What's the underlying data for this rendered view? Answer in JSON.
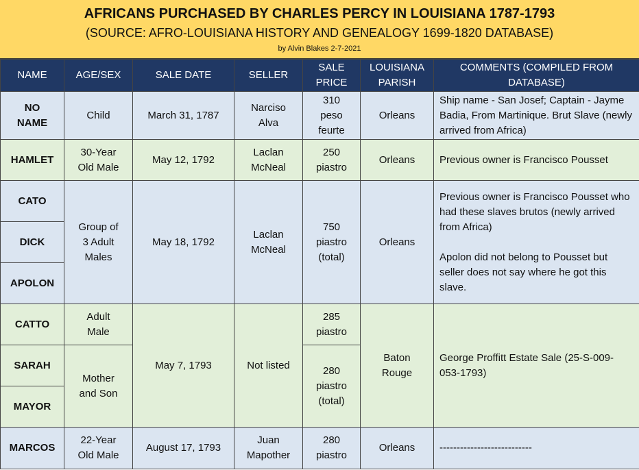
{
  "header": {
    "title": "AFRICANS PURCHASED BY CHARLES PERCY IN LOUISIANA 1787-1793",
    "subtitle": "(SOURCE: AFRO-LOUISIANA HISTORY AND GENEALOGY 1699-1820 DATABASE)",
    "byline": "by Alvin Blakes  2-7-2021"
  },
  "columns": {
    "name": "NAME",
    "age_sex": "AGE/SEX",
    "sale_date": "SALE DATE",
    "seller": "SELLER",
    "sale_price": "SALE PRICE",
    "parish": "LOUISIANA PARISH",
    "comments": "COMMENTS (COMPILED FROM DATABASE)"
  },
  "records": [
    {
      "names": [
        "NO NAME"
      ],
      "age_sex": [
        "Child"
      ],
      "sale_date": "March 31,  1787",
      "seller": "Narciso Alva",
      "sale_price": [
        "310 peso feurte"
      ],
      "parish": "Orleans",
      "comments": [
        "Ship name - San Josef;  Captain - Jayme Badia, From Martinique. Brut Slave (newly arrived from Africa)"
      ]
    },
    {
      "names": [
        "HAMLET"
      ],
      "age_sex": [
        "30-Year Old Male"
      ],
      "sale_date": "May 12, 1792",
      "seller": "Laclan McNeal",
      "sale_price": [
        "250 piastro"
      ],
      "parish": "Orleans",
      "comments": [
        "Previous owner is Francisco Pousset"
      ]
    },
    {
      "names": [
        "CATO",
        "DICK",
        "APOLON"
      ],
      "age_sex": [
        "Group of 3 Adult Males"
      ],
      "sale_date": "May 18, 1792",
      "seller": "Laclan McNeal",
      "sale_price": [
        "750 piastro (total)"
      ],
      "parish": "Orleans",
      "comments": [
        "Previous owner is Francisco Pousset who had these slaves brutos (newly arrived from Africa)",
        "Apolon did not belong to Pousset but seller does not say where he got this slave."
      ]
    },
    {
      "names": [
        "CATTO",
        "SARAH",
        "MAYOR"
      ],
      "age_sex": [
        "Adult Male",
        "Mother and Son"
      ],
      "sale_date": "May 7, 1793",
      "seller": "Not listed",
      "sale_price": [
        "285 piastro",
        "280 piastro (total)"
      ],
      "parish": "Baton Rouge",
      "comments": [
        "George Proffitt Estate Sale (25-S-009-053-1793)"
      ]
    },
    {
      "names": [
        "MARCOS"
      ],
      "age_sex": [
        "22-Year Old Male"
      ],
      "sale_date": "August 17, 1793",
      "seller": "Juan Mapother",
      "sale_price": [
        "280 piastro"
      ],
      "parish": "Orleans",
      "comments": [
        "---------------------------"
      ]
    }
  ],
  "colors": {
    "banner": "#ffd865",
    "header_row": "#203864",
    "row_blue": "#dbe5f1",
    "row_green": "#e2efd9"
  }
}
